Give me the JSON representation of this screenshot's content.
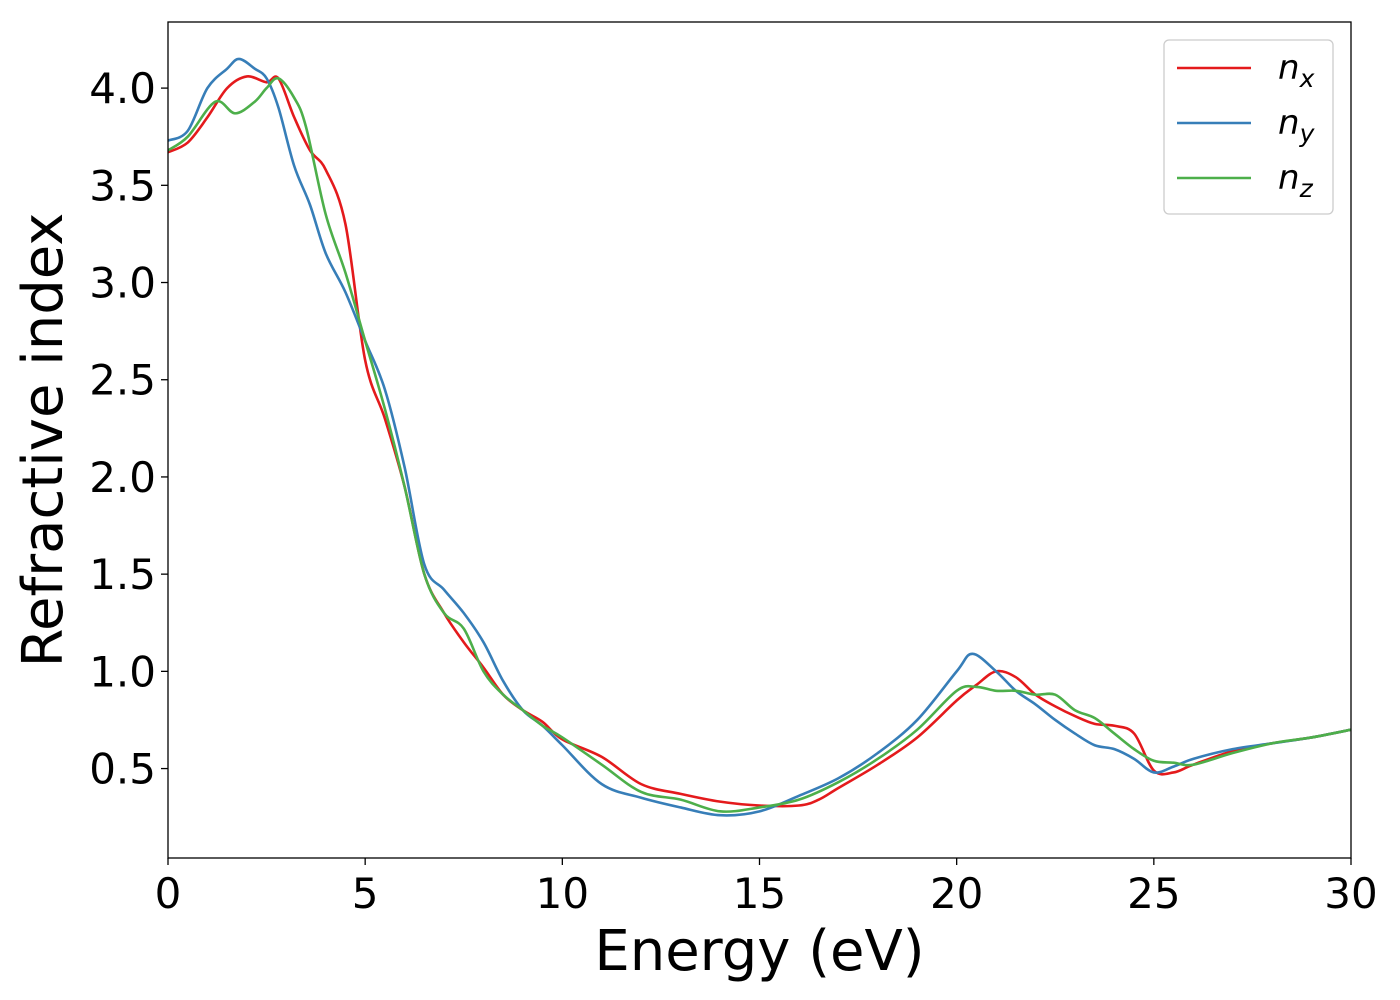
{
  "chart_data": {
    "type": "line",
    "title": "",
    "xlabel": "Energy (eV)",
    "ylabel": "Refractive index",
    "xlim": [
      0,
      30
    ],
    "ylim": [
      0.04,
      4.34
    ],
    "xticks": [
      0,
      5,
      10,
      15,
      20,
      25,
      30
    ],
    "xtick_labels": [
      "0",
      "5",
      "10",
      "15",
      "20",
      "25",
      "30"
    ],
    "yticks": [
      0.5,
      1.0,
      1.5,
      2.0,
      2.5,
      3.0,
      3.5,
      4.0
    ],
    "ytick_labels": [
      "0.5",
      "1.0",
      "1.5",
      "2.0",
      "2.5",
      "3.0",
      "3.5",
      "4.0"
    ],
    "grid": false,
    "legend_position": "top-right",
    "series": [
      {
        "name": "n_x",
        "legend_base": "n",
        "legend_sub": "x",
        "color": "#e41a1c",
        "x": [
          0,
          0.5,
          1.0,
          1.5,
          2.0,
          2.5,
          2.8,
          3.2,
          3.6,
          4.0,
          4.5,
          5.0,
          5.5,
          6.0,
          6.5,
          7.0,
          7.5,
          8.0,
          8.5,
          9.0,
          9.5,
          10.0,
          11.0,
          12.0,
          13.0,
          14.0,
          15.0,
          16.0,
          16.5,
          17.0,
          18.0,
          19.0,
          20.0,
          20.5,
          21.0,
          21.5,
          22.0,
          22.5,
          23.0,
          23.5,
          24.0,
          24.5,
          25.0,
          25.5,
          26.0,
          27.0,
          28.0,
          29.0,
          30.0
        ],
        "y": [
          3.67,
          3.72,
          3.85,
          4.0,
          4.06,
          4.03,
          4.05,
          3.85,
          3.68,
          3.58,
          3.3,
          2.6,
          2.3,
          1.95,
          1.5,
          1.3,
          1.15,
          1.02,
          0.88,
          0.8,
          0.74,
          0.65,
          0.56,
          0.42,
          0.37,
          0.33,
          0.31,
          0.31,
          0.34,
          0.4,
          0.52,
          0.66,
          0.85,
          0.93,
          1.0,
          0.97,
          0.88,
          0.82,
          0.77,
          0.73,
          0.72,
          0.68,
          0.49,
          0.48,
          0.52,
          0.59,
          0.63,
          0.66,
          0.7
        ]
      },
      {
        "name": "n_y",
        "legend_base": "n",
        "legend_sub": "y",
        "color": "#377eb8",
        "x": [
          0,
          0.5,
          1.0,
          1.5,
          1.8,
          2.2,
          2.5,
          2.8,
          3.2,
          3.6,
          4.0,
          4.5,
          5.0,
          5.5,
          6.0,
          6.5,
          7.0,
          7.5,
          8.0,
          8.5,
          9.0,
          9.5,
          10.0,
          11.0,
          12.0,
          13.0,
          14.0,
          15.0,
          16.0,
          17.0,
          18.0,
          19.0,
          20.0,
          20.4,
          21.0,
          21.5,
          22.0,
          22.5,
          23.0,
          23.5,
          24.0,
          24.5,
          25.0,
          25.5,
          26.0,
          27.0,
          28.0,
          29.0,
          30.0
        ],
        "y": [
          3.73,
          3.78,
          4.0,
          4.1,
          4.15,
          4.1,
          4.05,
          3.9,
          3.6,
          3.4,
          3.15,
          2.95,
          2.7,
          2.45,
          2.05,
          1.55,
          1.42,
          1.3,
          1.15,
          0.95,
          0.8,
          0.72,
          0.62,
          0.42,
          0.35,
          0.3,
          0.26,
          0.28,
          0.36,
          0.45,
          0.58,
          0.75,
          1.0,
          1.09,
          1.0,
          0.9,
          0.83,
          0.75,
          0.68,
          0.62,
          0.6,
          0.55,
          0.48,
          0.51,
          0.55,
          0.6,
          0.63,
          0.66,
          0.7
        ]
      },
      {
        "name": "n_z",
        "legend_base": "n",
        "legend_sub": "z",
        "color": "#4daf4a",
        "x": [
          0,
          0.5,
          1.2,
          1.7,
          2.2,
          2.5,
          2.8,
          3.2,
          3.5,
          4.0,
          4.5,
          5.0,
          5.5,
          6.0,
          6.5,
          7.0,
          7.5,
          8.0,
          8.5,
          9.0,
          9.5,
          10.0,
          11.0,
          12.0,
          13.0,
          14.0,
          15.0,
          16.0,
          17.0,
          18.0,
          19.0,
          20.0,
          20.5,
          21.0,
          21.5,
          22.0,
          22.5,
          23.0,
          23.5,
          24.0,
          24.5,
          25.0,
          25.5,
          26.0,
          27.0,
          28.0,
          29.0,
          30.0
        ],
        "y": [
          3.68,
          3.75,
          3.93,
          3.87,
          3.93,
          4.0,
          4.05,
          3.95,
          3.8,
          3.35,
          3.05,
          2.7,
          2.35,
          1.95,
          1.5,
          1.3,
          1.22,
          1.0,
          0.88,
          0.8,
          0.72,
          0.66,
          0.52,
          0.38,
          0.34,
          0.28,
          0.3,
          0.34,
          0.43,
          0.55,
          0.7,
          0.9,
          0.92,
          0.9,
          0.9,
          0.88,
          0.88,
          0.8,
          0.76,
          0.68,
          0.6,
          0.54,
          0.53,
          0.52,
          0.58,
          0.63,
          0.66,
          0.7
        ]
      }
    ]
  }
}
